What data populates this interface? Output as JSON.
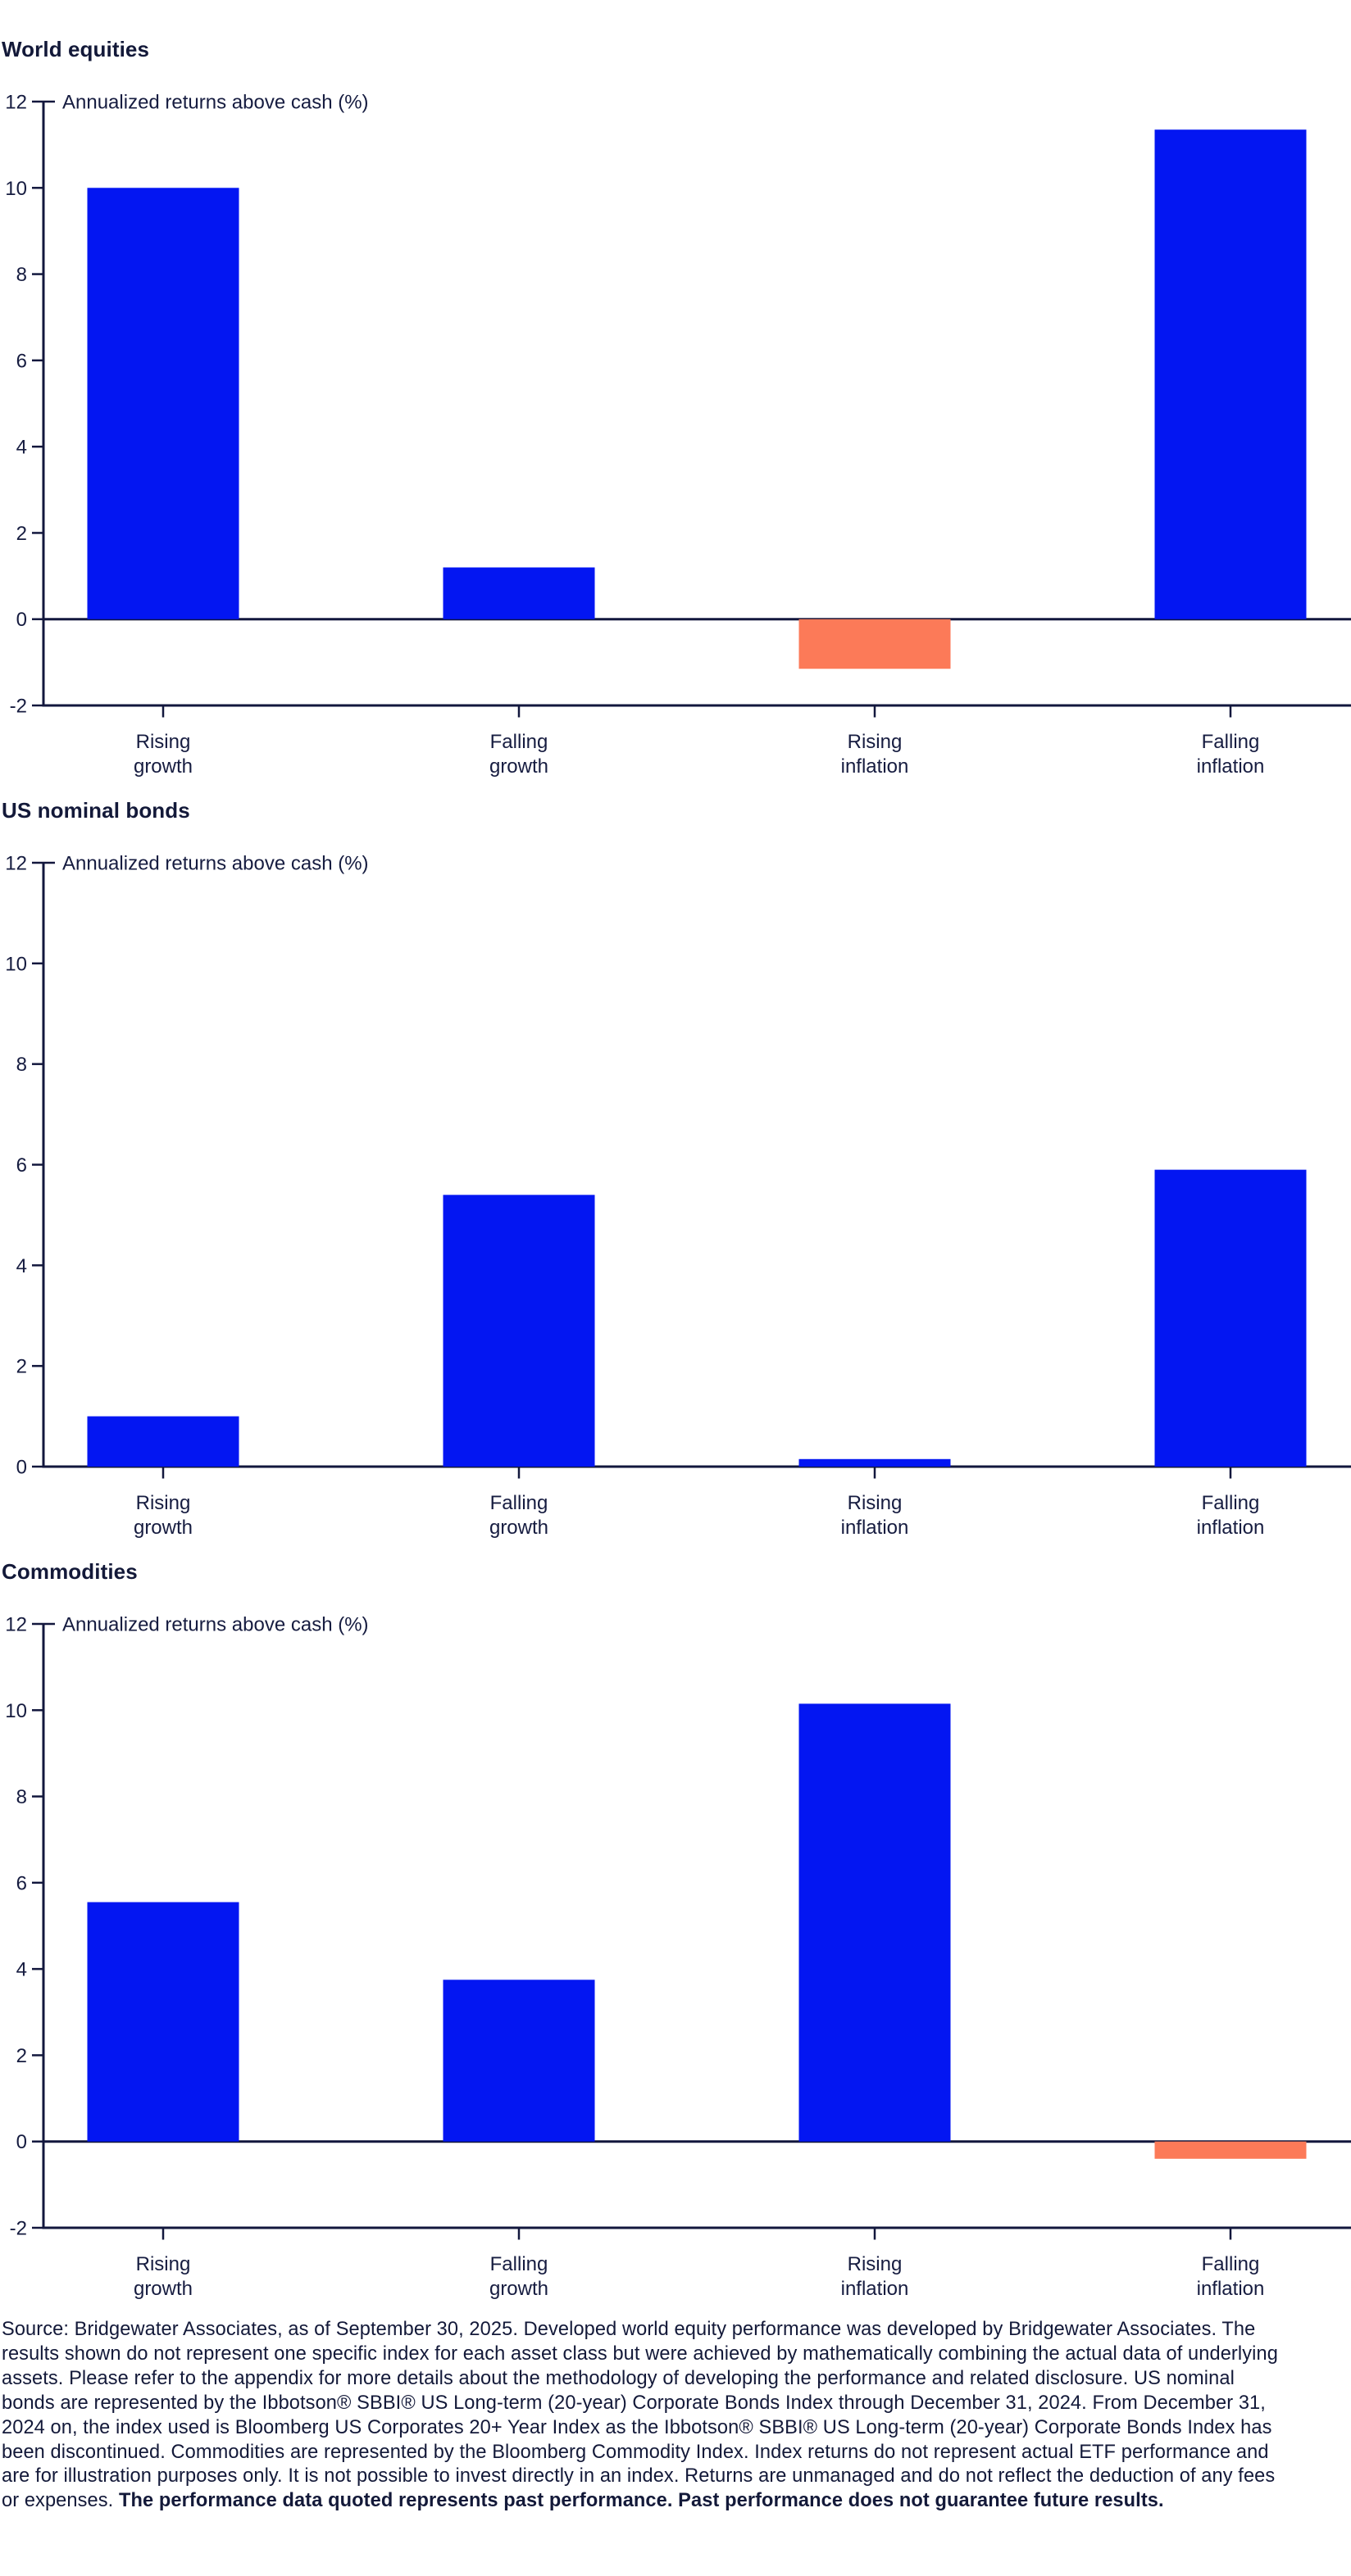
{
  "colors": {
    "bar_positive": "#0316f2",
    "bar_negative": "#fc7a58",
    "text": "#161c40",
    "axis_line": "#12173d",
    "background": "#ffffff"
  },
  "chart_data": [
    {
      "type": "bar",
      "title": "World equities",
      "ylabel": "Annualized returns above cash (%)",
      "categories": [
        "Rising growth",
        "Falling growth",
        "Rising inflation",
        "Falling inflation"
      ],
      "values": [
        10.0,
        1.2,
        -1.15,
        11.35
      ],
      "ylim": [
        -2,
        12
      ],
      "yticks": [
        12,
        10,
        8,
        6,
        4,
        2,
        0,
        -2
      ],
      "grid": false,
      "legend": "none"
    },
    {
      "type": "bar",
      "title": "US nominal bonds",
      "ylabel": "Annualized returns above cash (%)",
      "categories": [
        "Rising growth",
        "Falling growth",
        "Rising inflation",
        "Falling inflation"
      ],
      "values": [
        1.0,
        5.4,
        0.15,
        5.9
      ],
      "ylim": [
        0,
        12
      ],
      "yticks": [
        12,
        10,
        8,
        6,
        4,
        2,
        0
      ],
      "grid": false,
      "legend": "none"
    },
    {
      "type": "bar",
      "title": "Commodities",
      "ylabel": "Annualized returns above cash (%)",
      "categories": [
        "Rising growth",
        "Falling growth",
        "Rising inflation",
        "Falling inflation"
      ],
      "values": [
        5.55,
        3.75,
        10.15,
        -0.4
      ],
      "ylim": [
        -2,
        12
      ],
      "yticks": [
        12,
        10,
        8,
        6,
        4,
        2,
        0,
        -2
      ],
      "grid": false,
      "legend": "none"
    }
  ],
  "footer": {
    "text_regular": "Source: Bridgewater Associates, as of September 30, 2025. Developed world equity performance was developed by Bridgewater Associates. The results shown do not represent one specific index for each asset class but were achieved by mathematically combining the actual data of underlying assets. Please refer to the appendix for more details about the methodology of developing the performance and related disclosure. US nominal bonds are represented by the Ibbotson® SBBI® US Long-term (20-year) Corporate Bonds Index through December 31, 2024. From December 31, 2024 on, the index used is Bloomberg US Corporates 20+ Year Index as the Ibbotson® SBBI® US Long-term (20-year) Corporate Bonds Index has been discontinued. Commodities are represented by the Bloomberg Commodity Index. Index returns do not represent actual ETF performance and are for illustration purposes only. It is not possible to invest directly in an index. Returns are unmanaged and do not reflect the deduction of any fees or expenses. ",
    "text_bold": "The performance data quoted represents past performance. Past performance does not guarantee future results."
  }
}
